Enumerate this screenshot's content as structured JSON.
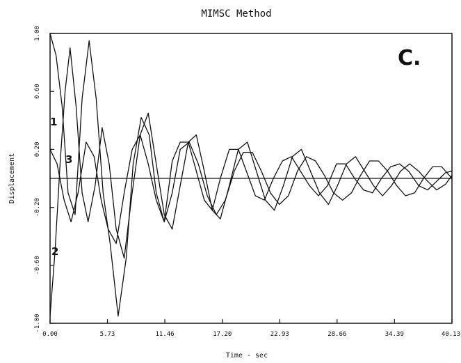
{
  "chart_data": {
    "type": "line",
    "title": "MIMSC Method",
    "xlabel": "Time - sec",
    "ylabel": "Displacement",
    "panel_label": "C.",
    "xlim": [
      0,
      40.13
    ],
    "ylim": [
      -1.0,
      1.0
    ],
    "x_ticks": [
      0,
      5.73,
      11.46,
      17.2,
      22.93,
      28.66,
      34.39,
      40.13
    ],
    "x_tick_labels": [
      "0.00",
      "5.73",
      "11.46",
      "17.20",
      "22.93",
      "28.66",
      "34.39",
      "40.13"
    ],
    "y_ticks": [
      1.0,
      0.6,
      0.2,
      -0.2,
      -0.6,
      -1.0
    ],
    "y_tick_labels": [
      "1.00",
      "0.60",
      "0.20",
      "-0.20",
      "-0.60",
      "-1.00"
    ],
    "grid": false,
    "legend": "none",
    "series": [
      {
        "name": "1",
        "x": [
          0,
          0.6,
          1.2,
          1.8,
          2.5,
          3.2,
          3.9,
          4.6,
          5.3,
          6.0,
          6.8,
          7.6,
          8.3,
          9.1,
          9.9,
          10.6,
          11.4,
          12.2,
          13.0,
          13.8,
          14.6,
          15.4,
          16.2,
          17.0,
          17.9,
          18.8,
          19.6,
          20.5,
          21.4,
          22.3,
          23.2,
          24.1,
          25.0,
          25.9,
          26.8,
          27.7,
          28.6,
          29.5,
          30.4,
          31.3,
          32.2,
          33.1,
          34.0,
          34.9,
          35.8,
          36.8,
          37.7,
          38.6,
          39.5,
          40.13
        ],
        "y": [
          1.0,
          0.85,
          0.5,
          -0.1,
          -0.25,
          0.55,
          0.95,
          0.55,
          -0.1,
          -0.45,
          -0.95,
          -0.55,
          0.1,
          0.42,
          0.3,
          -0.1,
          -0.3,
          0.12,
          0.25,
          0.25,
          0.05,
          -0.15,
          -0.22,
          0.0,
          0.2,
          0.2,
          0.05,
          -0.12,
          -0.15,
          0.0,
          0.12,
          0.15,
          0.05,
          -0.05,
          -0.12,
          -0.05,
          0.1,
          0.1,
          0.0,
          -0.08,
          -0.1,
          0.0,
          0.08,
          0.1,
          0.05,
          -0.05,
          -0.08,
          -0.02,
          0.04,
          0.05
        ]
      },
      {
        "name": "2",
        "x": [
          0,
          0.5,
          1.0,
          1.5,
          2.0,
          2.6,
          3.2,
          3.8,
          4.5,
          5.2,
          5.9,
          6.6,
          7.4,
          8.2,
          9.0,
          9.8,
          10.6,
          11.4,
          12.2,
          13.0,
          13.8,
          14.6,
          15.4,
          16.2,
          17.0,
          17.9,
          18.8,
          19.7,
          20.6,
          21.5,
          22.4,
          23.3,
          24.2,
          25.1,
          26.0,
          26.9,
          27.8,
          28.7,
          29.6,
          30.5,
          31.4,
          32.3,
          33.2,
          34.1,
          35.0,
          35.9,
          36.8,
          37.7,
          38.6,
          39.5,
          40.13
        ],
        "y": [
          -0.95,
          -0.5,
          0.1,
          0.6,
          0.9,
          0.5,
          -0.1,
          -0.3,
          -0.05,
          0.35,
          0.1,
          -0.35,
          -0.55,
          -0.1,
          0.3,
          0.45,
          0.1,
          -0.25,
          -0.35,
          -0.05,
          0.25,
          0.3,
          0.05,
          -0.22,
          -0.28,
          -0.05,
          0.2,
          0.25,
          0.05,
          -0.15,
          -0.22,
          -0.05,
          0.15,
          0.2,
          0.05,
          -0.1,
          -0.18,
          -0.05,
          0.1,
          0.15,
          0.05,
          -0.05,
          -0.12,
          -0.05,
          0.05,
          0.1,
          0.05,
          -0.02,
          -0.08,
          -0.04,
          0.02
        ]
      },
      {
        "name": "3",
        "x": [
          0,
          0.7,
          1.4,
          2.1,
          2.8,
          3.6,
          4.4,
          5.1,
          5.8,
          6.6,
          7.4,
          8.2,
          9.0,
          9.8,
          10.6,
          11.4,
          12.2,
          13.0,
          13.9,
          14.8,
          15.7,
          16.6,
          17.5,
          18.4,
          19.3,
          20.2,
          21.1,
          22.0,
          22.9,
          23.8,
          24.7,
          25.6,
          26.5,
          27.4,
          28.3,
          29.2,
          30.1,
          31.0,
          31.9,
          32.8,
          33.7,
          34.6,
          35.5,
          36.4,
          37.3,
          38.2,
          39.1,
          40.13
        ],
        "y": [
          0.2,
          0.1,
          -0.15,
          -0.3,
          -0.1,
          0.25,
          0.15,
          -0.15,
          -0.35,
          -0.45,
          -0.1,
          0.2,
          0.3,
          0.1,
          -0.15,
          -0.3,
          -0.1,
          0.2,
          0.25,
          0.1,
          -0.12,
          -0.25,
          -0.15,
          0.05,
          0.18,
          0.18,
          0.05,
          -0.1,
          -0.18,
          -0.12,
          0.05,
          0.15,
          0.12,
          0.02,
          -0.1,
          -0.15,
          -0.1,
          0.02,
          0.12,
          0.12,
          0.05,
          -0.05,
          -0.12,
          -0.1,
          0.0,
          0.08,
          0.08,
          0.0
        ]
      }
    ]
  }
}
